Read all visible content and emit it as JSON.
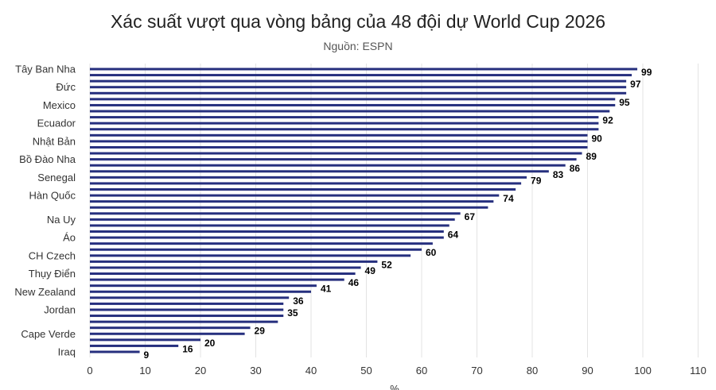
{
  "chart_data": {
    "type": "bar",
    "orientation": "horizontal",
    "title": "Xác suất vượt qua vòng bảng của 48 đội dự World Cup 2026",
    "subtitle": "Nguồn: ESPN",
    "xlabel": "%",
    "ylabel": "",
    "xlim": [
      0,
      110
    ],
    "xticks": [
      0,
      10,
      20,
      30,
      40,
      50,
      60,
      70,
      80,
      90,
      100,
      110
    ],
    "grid": "vertical",
    "legend": "none",
    "bar_color": "#262f7e",
    "shown_category_labels": [
      "Tây Ban Nha",
      "Đức",
      "Mexico",
      "Ecuador",
      "Nhật Bản",
      "Bồ Đào Nha",
      "Senegal",
      "Hàn Quốc",
      "Na Uy",
      "Áo",
      "CH Czech",
      "Thụy Điển",
      "New Zealand",
      "Jordan",
      "Cape Verde",
      "Iraq"
    ],
    "bars": [
      {
        "category": "Tây Ban Nha",
        "value": 99,
        "label": "99"
      },
      {
        "value": 98
      },
      {
        "value": 97,
        "label": "97"
      },
      {
        "category": "Đức",
        "value": 97
      },
      {
        "value": 97
      },
      {
        "value": 95,
        "label": "95"
      },
      {
        "category": "Mexico",
        "value": 95
      },
      {
        "value": 94
      },
      {
        "value": 92,
        "label": "92"
      },
      {
        "category": "Ecuador",
        "value": 92
      },
      {
        "value": 92
      },
      {
        "value": 90,
        "label": "90"
      },
      {
        "category": "Nhật Bản",
        "value": 90
      },
      {
        "value": 90
      },
      {
        "value": 89,
        "label": "89"
      },
      {
        "category": "Bồ Đào Nha",
        "value": 88
      },
      {
        "value": 86,
        "label": "86"
      },
      {
        "value": 83,
        "label": "83"
      },
      {
        "category": "Senegal",
        "value": 79,
        "label": "79"
      },
      {
        "value": 78
      },
      {
        "value": 77
      },
      {
        "category": "Hàn Quốc",
        "value": 74,
        "label": "74"
      },
      {
        "value": 73
      },
      {
        "value": 72
      },
      {
        "value": 67,
        "label": "67"
      },
      {
        "category": "Na Uy",
        "value": 66
      },
      {
        "value": 65
      },
      {
        "value": 64,
        "label": "64"
      },
      {
        "category": "Áo",
        "value": 64
      },
      {
        "value": 62
      },
      {
        "value": 60,
        "label": "60"
      },
      {
        "category": "CH Czech",
        "value": 58
      },
      {
        "value": 52,
        "label": "52"
      },
      {
        "value": 49,
        "label": "49"
      },
      {
        "category": "Thụy Điển",
        "value": 48
      },
      {
        "value": 46,
        "label": "46"
      },
      {
        "value": 41,
        "label": "41"
      },
      {
        "category": "New Zealand",
        "value": 40
      },
      {
        "value": 36,
        "label": "36"
      },
      {
        "value": 35
      },
      {
        "category": "Jordan",
        "value": 35,
        "label": "35"
      },
      {
        "value": 35
      },
      {
        "value": 34
      },
      {
        "value": 29,
        "label": "29"
      },
      {
        "category": "Cape Verde",
        "value": 28
      },
      {
        "value": 20,
        "label": "20"
      },
      {
        "value": 16,
        "label": "16"
      },
      {
        "category": "Iraq",
        "value": 9,
        "label": "9"
      }
    ]
  }
}
